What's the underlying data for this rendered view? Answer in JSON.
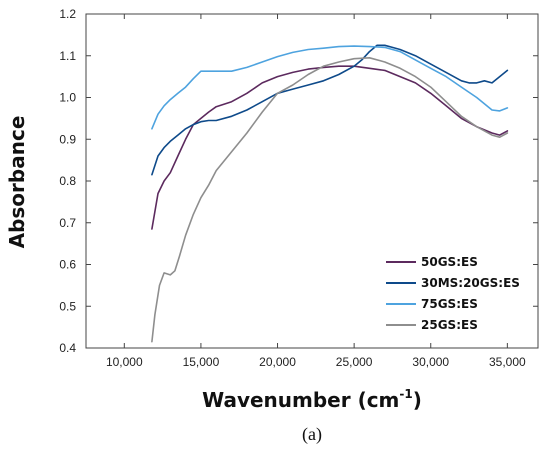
{
  "chart_data": {
    "type": "line",
    "xlabel": "Wavenumber (cm",
    "xlabel_sup": "-1",
    "xlabel_close": ")",
    "ylabel": "Absorbance",
    "xlim": [
      7500,
      37000
    ],
    "ylim": [
      0.4,
      1.2
    ],
    "x_ticks": [
      10000,
      15000,
      20000,
      25000,
      30000,
      35000
    ],
    "x_tick_labels": [
      "10,000",
      "15,000",
      "20,000",
      "25,000",
      "30,000",
      "35,000"
    ],
    "y_ticks": [
      0.4,
      0.5,
      0.6,
      0.7,
      0.8,
      0.9,
      1.0,
      1.1,
      1.2
    ],
    "y_tick_labels": [
      "0.4",
      "0.5",
      "0.6",
      "0.7",
      "0.8",
      "0.9",
      "1.0",
      "1.1",
      "1.2"
    ],
    "grid": false,
    "legend_position": "bottom-right",
    "caption": "(a)",
    "series": [
      {
        "name": "50GS:ES",
        "color": "#5c2a5e",
        "x": [
          11800,
          12200,
          12600,
          13000,
          13500,
          14000,
          14500,
          15000,
          15500,
          16000,
          17000,
          18000,
          19000,
          20000,
          21000,
          22000,
          23000,
          24000,
          25000,
          26000,
          27000,
          28000,
          29000,
          30000,
          31000,
          32000,
          33000,
          34000,
          34500,
          35000
        ],
        "y": [
          0.685,
          0.77,
          0.8,
          0.82,
          0.86,
          0.9,
          0.935,
          0.95,
          0.965,
          0.978,
          0.99,
          1.01,
          1.035,
          1.05,
          1.06,
          1.068,
          1.072,
          1.075,
          1.075,
          1.07,
          1.065,
          1.05,
          1.035,
          1.01,
          0.98,
          0.95,
          0.93,
          0.915,
          0.91,
          0.92
        ]
      },
      {
        "name": "30MS:20GS:ES",
        "color": "#0e4a8a",
        "x": [
          11800,
          12200,
          12600,
          13000,
          13500,
          14000,
          14500,
          15000,
          15500,
          16000,
          17000,
          18000,
          19000,
          20000,
          21000,
          22000,
          23000,
          24000,
          25000,
          25500,
          26000,
          26500,
          27000,
          27500,
          28000,
          29000,
          30000,
          31000,
          32000,
          32500,
          33000,
          33500,
          34000,
          34500,
          35000
        ],
        "y": [
          0.815,
          0.86,
          0.88,
          0.895,
          0.91,
          0.925,
          0.935,
          0.942,
          0.945,
          0.945,
          0.955,
          0.97,
          0.99,
          1.01,
          1.02,
          1.03,
          1.04,
          1.055,
          1.075,
          1.09,
          1.11,
          1.125,
          1.125,
          1.12,
          1.115,
          1.1,
          1.08,
          1.06,
          1.04,
          1.035,
          1.035,
          1.04,
          1.035,
          1.05,
          1.065
        ]
      },
      {
        "name": "75GS:ES",
        "color": "#4ea3df",
        "x": [
          11800,
          12200,
          12600,
          13000,
          13500,
          14000,
          14500,
          15000,
          15500,
          16000,
          17000,
          18000,
          19000,
          20000,
          21000,
          22000,
          23000,
          24000,
          25000,
          26000,
          27000,
          28000,
          29000,
          30000,
          31000,
          32000,
          33000,
          34000,
          34500,
          35000
        ],
        "y": [
          0.925,
          0.96,
          0.98,
          0.995,
          1.01,
          1.025,
          1.045,
          1.063,
          1.063,
          1.063,
          1.063,
          1.072,
          1.085,
          1.098,
          1.108,
          1.115,
          1.118,
          1.122,
          1.123,
          1.122,
          1.12,
          1.11,
          1.09,
          1.07,
          1.05,
          1.025,
          1.0,
          0.97,
          0.968,
          0.975
        ]
      },
      {
        "name": "25GS:ES",
        "color": "#8e8e8e",
        "x": [
          11800,
          12000,
          12300,
          12600,
          13000,
          13300,
          13600,
          14000,
          14500,
          15000,
          15500,
          16000,
          17000,
          18000,
          19000,
          20000,
          21000,
          22000,
          23000,
          24000,
          25000,
          26000,
          27000,
          28000,
          29000,
          30000,
          31000,
          32000,
          33000,
          34000,
          34500,
          35000
        ],
        "y": [
          0.415,
          0.48,
          0.55,
          0.58,
          0.575,
          0.585,
          0.62,
          0.67,
          0.72,
          0.76,
          0.79,
          0.825,
          0.87,
          0.915,
          0.965,
          1.01,
          1.03,
          1.055,
          1.075,
          1.085,
          1.093,
          1.095,
          1.085,
          1.07,
          1.05,
          1.025,
          0.99,
          0.955,
          0.93,
          0.91,
          0.905,
          0.915
        ]
      }
    ]
  }
}
